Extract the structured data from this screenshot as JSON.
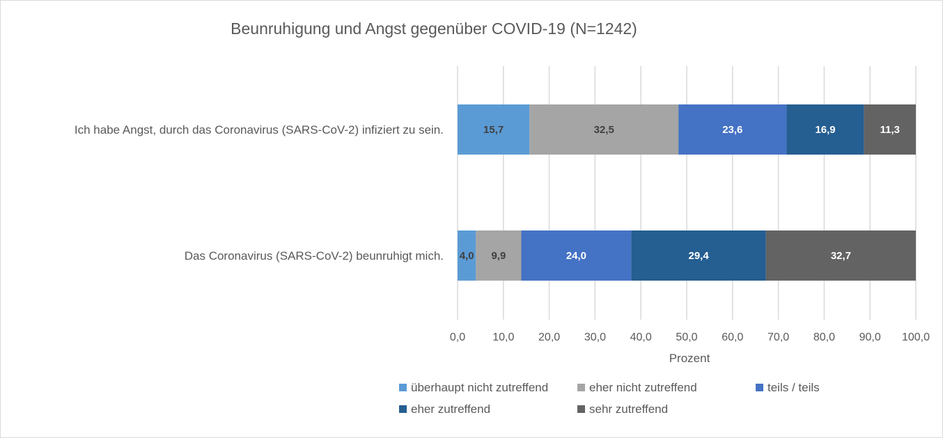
{
  "chart_data": {
    "type": "bar",
    "orientation": "horizontal",
    "stacked": true,
    "title": "Beunruhigung und Angst gegenüber COVID-19 (N=1242)",
    "xlabel": "Prozent",
    "ylabel": "",
    "xlim": [
      0,
      100
    ],
    "x_ticks": [
      0,
      10,
      20,
      30,
      40,
      50,
      60,
      70,
      80,
      90,
      100
    ],
    "x_tick_labels": [
      "0,0",
      "10,0",
      "20,0",
      "30,0",
      "40,0",
      "50,0",
      "60,0",
      "70,0",
      "80,0",
      "90,0",
      "100,0"
    ],
    "grid": "vertical",
    "legend_position": "bottom",
    "categories": [
      "Ich habe Angst, durch das Coronavirus (SARS-CoV-2) infiziert zu sein.",
      "Das Coronavirus (SARS-CoV-2) beunruhigt mich."
    ],
    "series": [
      {
        "name": "überhaupt nicht zutreffend",
        "color": "#5B9BD5",
        "label_color": "#404040",
        "values": [
          15.7,
          4.0
        ],
        "labels": [
          "15,7",
          "4,0"
        ]
      },
      {
        "name": "eher nicht zutreffend",
        "color": "#A5A5A5",
        "label_color": "#404040",
        "values": [
          32.5,
          9.9
        ],
        "labels": [
          "32,5",
          "9,9"
        ]
      },
      {
        "name": "teils / teils",
        "color": "#4472C4",
        "label_color": "#FFFFFF",
        "values": [
          23.6,
          24.0
        ],
        "labels": [
          "23,6",
          "24,0"
        ]
      },
      {
        "name": "eher zutreffend",
        "color": "#255E91",
        "label_color": "#FFFFFF",
        "values": [
          16.9,
          29.4
        ],
        "labels": [
          "16,9",
          "29,4"
        ]
      },
      {
        "name": "sehr zutreffend",
        "color": "#636363",
        "label_color": "#FFFFFF",
        "values": [
          11.3,
          32.7
        ],
        "labels": [
          "11,3",
          "32,7"
        ]
      }
    ]
  }
}
